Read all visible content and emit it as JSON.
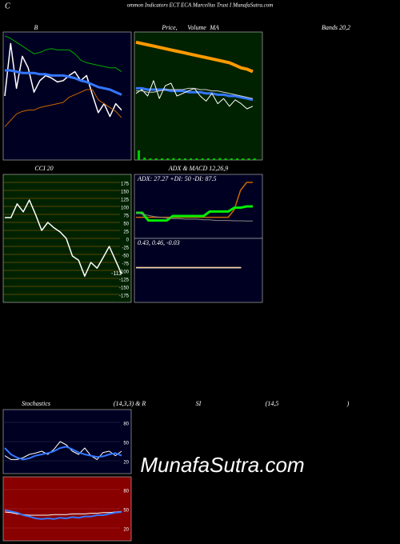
{
  "header": {
    "initial": "C",
    "title": "ommon Indicators ECT ECA Marcellus Trust I MunafaSutra.com"
  },
  "watermark": "MunafaSutra.com",
  "chart_data": [
    {
      "type": "line",
      "title_parts": [
        "B",
        "Bands 20,2"
      ],
      "ylim": [
        0,
        100
      ],
      "series": [
        {
          "color": "#00aa00",
          "values": [
            97,
            95,
            92,
            89,
            86,
            83,
            84,
            86,
            87,
            86,
            86,
            86,
            83,
            78,
            76,
            75,
            74,
            73,
            72,
            72,
            69
          ]
        },
        {
          "color": "#ffffff",
          "values": [
            50,
            91,
            56,
            81,
            72,
            53,
            62,
            66,
            64,
            61,
            62,
            66,
            69,
            62,
            66,
            51,
            37,
            44,
            34,
            44,
            39
          ]
        },
        {
          "color": "#3377ff",
          "values": [
            70,
            70,
            69,
            68,
            68,
            68,
            67,
            67,
            66,
            66,
            66,
            65,
            64,
            62,
            61,
            59,
            57,
            56,
            55,
            53,
            51
          ]
        },
        {
          "color": "#cc6600",
          "values": [
            26,
            31,
            36,
            38,
            39,
            39,
            41,
            42,
            43,
            44,
            45,
            49,
            51,
            53,
            55,
            55,
            47,
            44,
            41,
            38,
            33
          ]
        }
      ]
    },
    {
      "type": "line",
      "title_parts": [
        "Price,",
        "Volume",
        "MA"
      ],
      "ylim": [
        0,
        100
      ],
      "series": [
        {
          "color": "#ff9900",
          "values": [
            92,
            91,
            90,
            89,
            88,
            87,
            86,
            85,
            84,
            83,
            82,
            81,
            80,
            79,
            78,
            77,
            76,
            74,
            72,
            71,
            69
          ]
        },
        {
          "color": "#3377ff",
          "values": [
            56,
            56,
            55,
            55,
            55,
            55,
            54,
            54,
            54,
            53,
            53,
            53,
            52,
            52,
            51,
            51,
            50,
            50,
            49,
            48,
            47
          ]
        },
        {
          "color": "#ffffff",
          "values": [
            52,
            55,
            50,
            62,
            48,
            58,
            60,
            50,
            52,
            54,
            56,
            50,
            46,
            52,
            44,
            48,
            42,
            47,
            44,
            40,
            42
          ]
        },
        {
          "color": "#cccccc",
          "values": [
            54,
            54,
            53,
            53,
            54,
            55,
            55,
            55,
            55,
            56,
            56,
            55,
            55,
            54,
            54,
            53,
            52,
            51,
            50,
            49,
            48
          ]
        }
      ],
      "volume": {
        "color": "#00cc00",
        "ylim": [
          0,
          100
        ],
        "values": [
          60,
          15,
          10,
          10,
          10,
          10,
          12,
          10,
          10,
          10,
          10,
          10,
          10,
          10,
          12,
          10,
          10,
          10,
          10,
          10,
          10
        ]
      }
    },
    {
      "type": "line",
      "title_parts": [
        "CCI 20"
      ],
      "ylim": [
        -200,
        200
      ],
      "grid": true,
      "grid_color": "#b36b00",
      "yticks": [
        175,
        150,
        125,
        100,
        75,
        50,
        25,
        0,
        -25,
        -50,
        -75,
        -100,
        -125,
        -150,
        -175
      ],
      "series": [
        {
          "color": "#ffffff",
          "values": [
            65,
            65,
            108,
            83,
            120,
            75,
            25,
            50,
            33,
            20,
            0,
            -55,
            -68,
            -118,
            -75,
            -93,
            -60,
            -25,
            -68,
            -111
          ]
        }
      ]
    },
    {
      "type": "line",
      "title_parts": [
        "ADX  & MACD 12,26,9"
      ],
      "label": "ADX: 27.27  +DI: 50  -DI: 87.5",
      "ylim": [
        0,
        100
      ],
      "series": [
        {
          "color": "#cc6600",
          "values": [
            33,
            33,
            33,
            33,
            33,
            33,
            33,
            33,
            33,
            33,
            33,
            33,
            33,
            33,
            33,
            33,
            45,
            75,
            87.5,
            87.5
          ]
        },
        {
          "color": "#00ee00",
          "values": [
            40,
            40,
            28,
            28,
            28,
            28,
            35,
            35,
            35,
            35,
            35,
            35,
            42,
            42,
            42,
            42,
            48,
            48,
            50,
            50
          ]
        },
        {
          "color": "#888888",
          "values": [
            40,
            38,
            36,
            34,
            33,
            32,
            31,
            31,
            30,
            30,
            30,
            29,
            29,
            28,
            28,
            28,
            27.5,
            27.5,
            27.27,
            27.27
          ]
        }
      ]
    },
    {
      "type": "line",
      "label": "0.43,  0.46,  -0.03",
      "ylim": [
        -5,
        5
      ],
      "series": [
        {
          "color": "#ffffff",
          "values": [
            0.43,
            0.43,
            0.43,
            0.43,
            0.43,
            0.43,
            0.43,
            0.43,
            0.43,
            0.43,
            0.43,
            0.43,
            0.43,
            0.43,
            0.43,
            0.43,
            0.43,
            0.43
          ]
        },
        {
          "color": "#ffcc88",
          "values": [
            0.46,
            0.46,
            0.46,
            0.46,
            0.46,
            0.46,
            0.46,
            0.46,
            0.46,
            0.46,
            0.46,
            0.46,
            0.46,
            0.46,
            0.46,
            0.46,
            0.46,
            0.46
          ]
        }
      ]
    },
    {
      "type": "line",
      "title_parts": [
        "Stochastics",
        "(14,3,3) & R",
        "SI",
        "(14,5",
        ")"
      ],
      "ylim": [
        0,
        100
      ],
      "yticks": [
        80,
        50,
        20
      ],
      "grid": true,
      "grid_color": "#333355",
      "series": [
        {
          "color": "#ffffff",
          "values": [
            28,
            22,
            22,
            25,
            30,
            32,
            35,
            30,
            38,
            50,
            45,
            35,
            30,
            40,
            28,
            22,
            33,
            35,
            28,
            35
          ]
        },
        {
          "color": "#3377ff",
          "values": [
            40,
            30,
            25,
            22,
            24,
            28,
            30,
            32,
            35,
            40,
            42,
            38,
            33,
            30,
            28,
            26,
            27,
            30,
            32,
            28
          ]
        }
      ]
    },
    {
      "type": "line",
      "ylim": [
        0,
        100
      ],
      "yticks": [
        80,
        50,
        20
      ],
      "grid": true,
      "grid_color": "#aa3333",
      "series": [
        {
          "color": "#ffffff",
          "values": [
            45,
            44,
            42,
            41,
            40,
            40,
            40,
            40,
            41,
            41,
            41,
            42,
            42,
            42,
            43,
            43,
            44,
            44,
            45,
            46
          ]
        },
        {
          "color": "#3377ff",
          "values": [
            48,
            46,
            44,
            40,
            38,
            35,
            34,
            35,
            34,
            36,
            35,
            37,
            36,
            38,
            38,
            40,
            40,
            42,
            44,
            45
          ]
        }
      ]
    }
  ]
}
